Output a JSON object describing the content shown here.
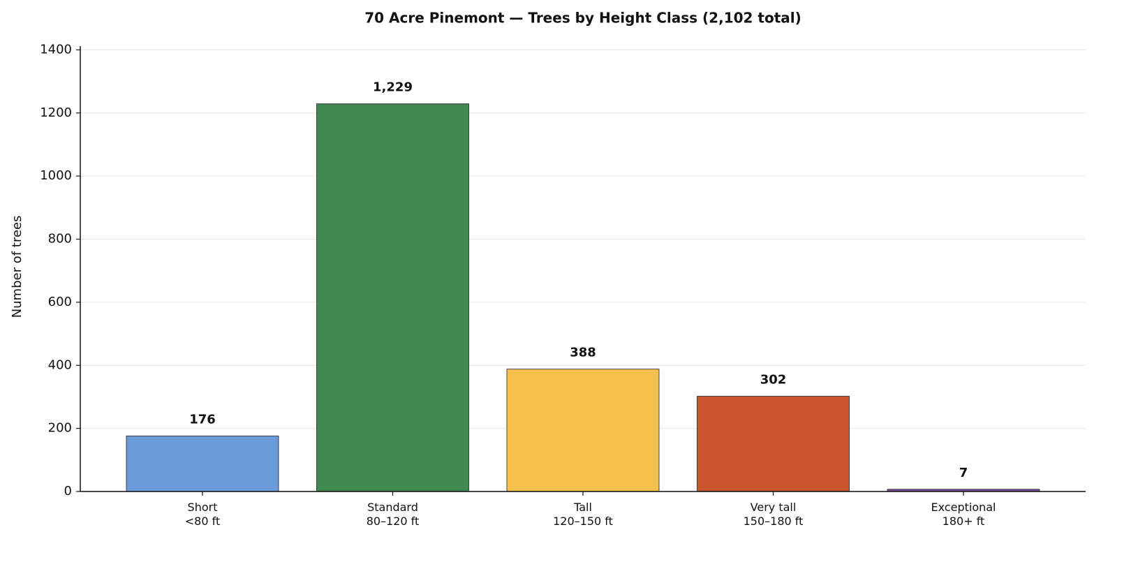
{
  "chart_data": {
    "type": "bar",
    "title": "70 Acre Pinemont — Trees by Height Class (2,102 total)",
    "y_label": "Number of trees",
    "categories": [
      [
        "Short",
        "<80 ft"
      ],
      [
        "Standard",
        "80–120 ft"
      ],
      [
        "Tall",
        "120–150 ft"
      ],
      [
        "Very tall",
        "150–180 ft"
      ],
      [
        "Exceptional",
        "180+ ft"
      ]
    ],
    "values": [
      176,
      1229,
      388,
      302,
      7
    ],
    "value_labels": [
      "176",
      "1,229",
      "388",
      "302",
      "7"
    ],
    "colors": [
      "#6a9bd8",
      "#3f8a4f",
      "#f4c04e",
      "#c9552f",
      "#7b4fa0"
    ],
    "ylim": [
      0,
      1412
    ],
    "yticks": [
      0,
      200,
      400,
      600,
      800,
      1000,
      1200,
      1400
    ],
    "grid": true
  }
}
